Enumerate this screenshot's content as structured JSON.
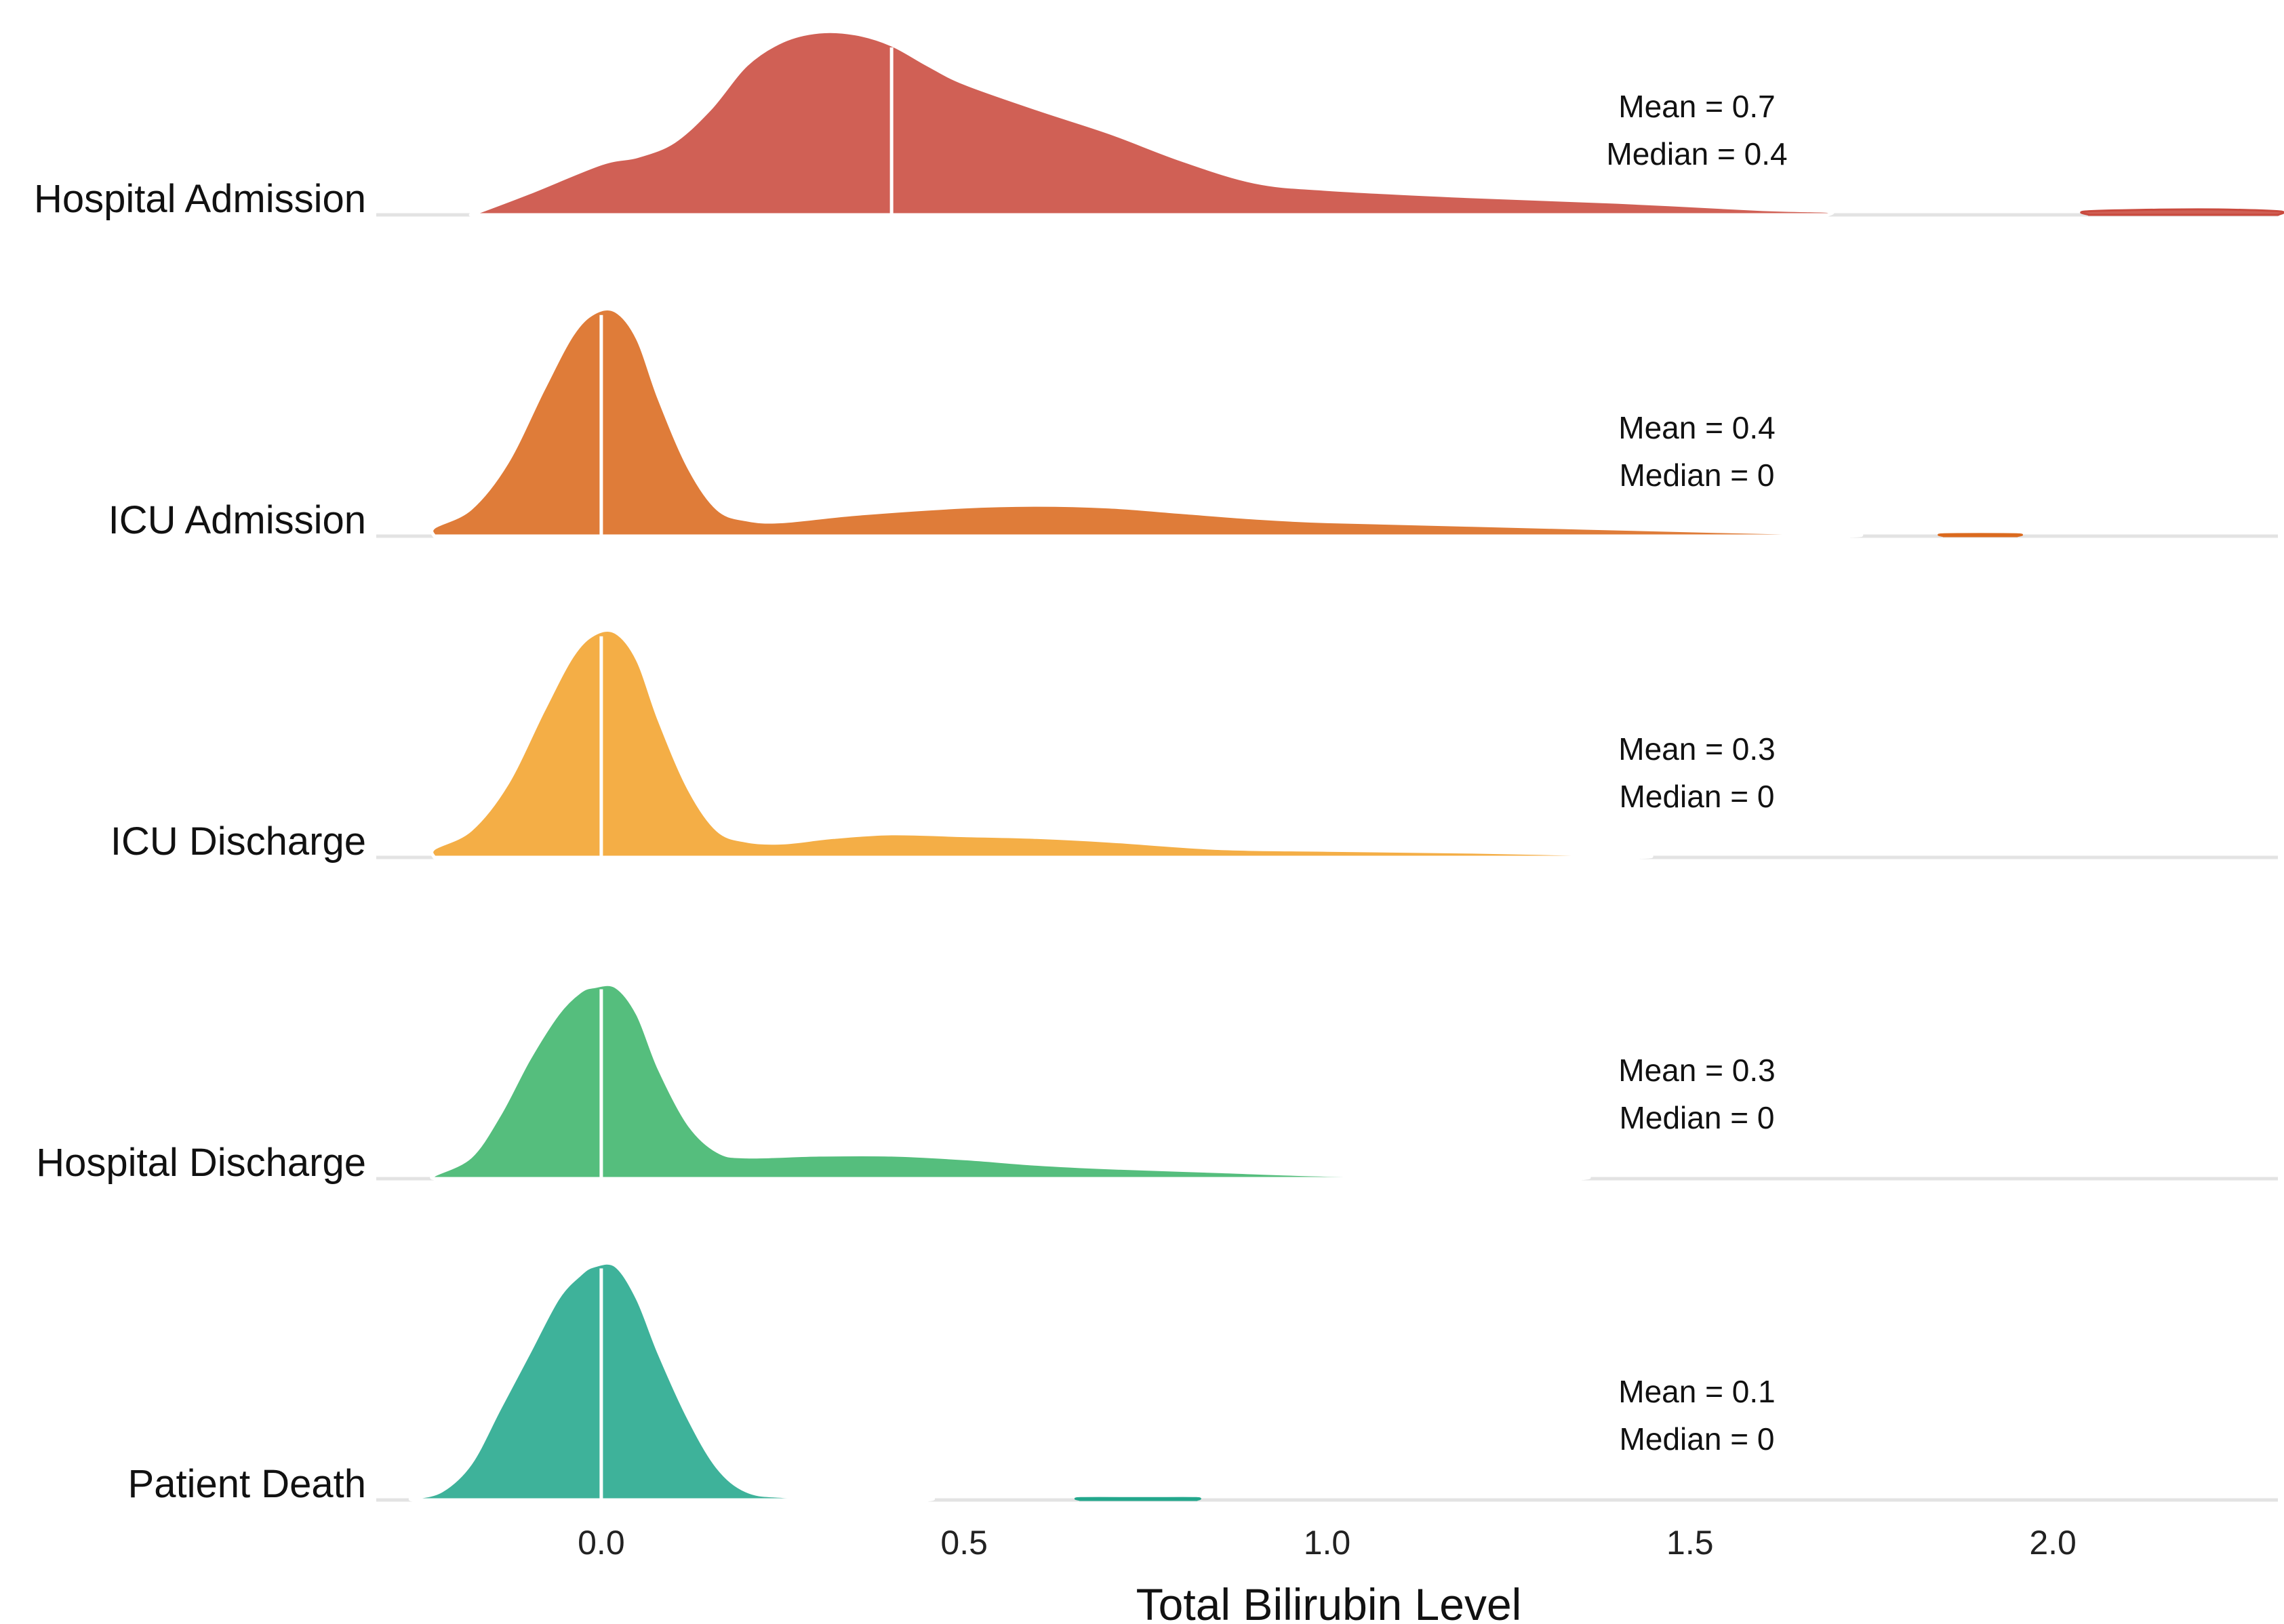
{
  "chart_data": {
    "type": "ridgeline",
    "xlabel": "Total Bilirubin Level",
    "xlim": [
      -0.31,
      2.31
    ],
    "xticks": [
      0.0,
      0.5,
      1.0,
      1.5,
      2.0
    ],
    "xtick_labels": [
      "0.0",
      "0.5",
      "1.0",
      "1.5",
      "2.0"
    ],
    "grid": "horizontal baselines only",
    "series": [
      {
        "name": "Hospital Admission",
        "color": "#C94A3E",
        "mean_label": "Mean = 0.7",
        "median_label": "Median = 0.4",
        "median": 0.4,
        "density": [
          [
            -0.18,
            0
          ],
          [
            -0.1,
            0.12
          ],
          [
            0.0,
            0.28
          ],
          [
            0.05,
            0.32
          ],
          [
            0.1,
            0.4
          ],
          [
            0.15,
            0.58
          ],
          [
            0.2,
            0.82
          ],
          [
            0.25,
            0.95
          ],
          [
            0.3,
            1.0
          ],
          [
            0.35,
            0.99
          ],
          [
            0.4,
            0.93
          ],
          [
            0.45,
            0.82
          ],
          [
            0.5,
            0.72
          ],
          [
            0.6,
            0.58
          ],
          [
            0.7,
            0.45
          ],
          [
            0.8,
            0.3
          ],
          [
            0.9,
            0.18
          ],
          [
            1.0,
            0.14
          ],
          [
            1.2,
            0.1
          ],
          [
            1.4,
            0.07
          ],
          [
            1.6,
            0.03
          ],
          [
            1.69,
            0.02
          ],
          [
            1.69,
            0
          ]
        ],
        "density_extra": [
          [
            2.05,
            0
          ],
          [
            2.05,
            0.02
          ],
          [
            2.2,
            0.03
          ],
          [
            2.31,
            0.02
          ],
          [
            2.31,
            0
          ]
        ]
      },
      {
        "name": "ICU Admission",
        "color": "#DB6A1E",
        "mean_label": "Mean = 0.4",
        "median_label": "Median = 0",
        "median": 0.0,
        "density": [
          [
            -0.23,
            0
          ],
          [
            -0.23,
            0.05
          ],
          [
            -0.18,
            0.15
          ],
          [
            -0.13,
            0.4
          ],
          [
            -0.08,
            0.8
          ],
          [
            -0.04,
            1.1
          ],
          [
            -0.01,
            1.22
          ],
          [
            0.02,
            1.23
          ],
          [
            0.05,
            1.08
          ],
          [
            0.08,
            0.75
          ],
          [
            0.12,
            0.38
          ],
          [
            0.16,
            0.15
          ],
          [
            0.2,
            0.09
          ],
          [
            0.25,
            0.08
          ],
          [
            0.35,
            0.12
          ],
          [
            0.5,
            0.16
          ],
          [
            0.6,
            0.17
          ],
          [
            0.7,
            0.16
          ],
          [
            0.8,
            0.13
          ],
          [
            0.9,
            0.1
          ],
          [
            1.0,
            0.08
          ],
          [
            1.2,
            0.06
          ],
          [
            1.5,
            0.03
          ],
          [
            1.72,
            0.01
          ],
          [
            1.72,
            0
          ]
        ],
        "density_extra": [
          [
            1.85,
            0
          ],
          [
            1.85,
            0.01
          ],
          [
            1.95,
            0.01
          ],
          [
            1.95,
            0
          ]
        ]
      },
      {
        "name": "ICU Discharge",
        "color": "#F2A32C",
        "mean_label": "Mean = 0.3",
        "median_label": "Median = 0",
        "median": 0.0,
        "density": [
          [
            -0.23,
            0
          ],
          [
            -0.23,
            0.05
          ],
          [
            -0.18,
            0.15
          ],
          [
            -0.13,
            0.4
          ],
          [
            -0.08,
            0.8
          ],
          [
            -0.04,
            1.1
          ],
          [
            -0.01,
            1.22
          ],
          [
            0.02,
            1.23
          ],
          [
            0.05,
            1.08
          ],
          [
            0.08,
            0.75
          ],
          [
            0.12,
            0.38
          ],
          [
            0.16,
            0.15
          ],
          [
            0.2,
            0.09
          ],
          [
            0.25,
            0.08
          ],
          [
            0.32,
            0.11
          ],
          [
            0.4,
            0.13
          ],
          [
            0.5,
            0.12
          ],
          [
            0.6,
            0.11
          ],
          [
            0.7,
            0.09
          ],
          [
            0.85,
            0.05
          ],
          [
            1.0,
            0.04
          ],
          [
            1.2,
            0.03
          ],
          [
            1.43,
            0.01
          ],
          [
            1.43,
            0
          ]
        ]
      },
      {
        "name": "Hospital Discharge",
        "color": "#3DB56B",
        "mean_label": "Mean = 0.3",
        "median_label": "Median = 0",
        "median": 0.0,
        "density": [
          [
            -0.23,
            0
          ],
          [
            -0.23,
            0.02
          ],
          [
            -0.18,
            0.12
          ],
          [
            -0.14,
            0.35
          ],
          [
            -0.1,
            0.65
          ],
          [
            -0.06,
            0.9
          ],
          [
            -0.03,
            1.02
          ],
          [
            -0.01,
            1.05
          ],
          [
            0.02,
            1.05
          ],
          [
            0.05,
            0.9
          ],
          [
            0.08,
            0.6
          ],
          [
            0.12,
            0.3
          ],
          [
            0.16,
            0.15
          ],
          [
            0.2,
            0.12
          ],
          [
            0.3,
            0.13
          ],
          [
            0.4,
            0.13
          ],
          [
            0.5,
            0.11
          ],
          [
            0.6,
            0.08
          ],
          [
            0.7,
            0.06
          ],
          [
            0.85,
            0.04
          ],
          [
            1.0,
            0.02
          ],
          [
            1.2,
            0.01
          ],
          [
            1.35,
            0.01
          ],
          [
            1.35,
            0
          ]
        ]
      },
      {
        "name": "Patient Death",
        "color": "#23A78C",
        "mean_label": "Mean = 0.1",
        "median_label": "Median = 0",
        "median": 0.0,
        "density": [
          [
            -0.26,
            0
          ],
          [
            -0.26,
            0.01
          ],
          [
            -0.22,
            0.05
          ],
          [
            -0.18,
            0.2
          ],
          [
            -0.14,
            0.5
          ],
          [
            -0.1,
            0.8
          ],
          [
            -0.06,
            1.1
          ],
          [
            -0.03,
            1.23
          ],
          [
            -0.01,
            1.28
          ],
          [
            0.02,
            1.28
          ],
          [
            0.05,
            1.1
          ],
          [
            0.08,
            0.8
          ],
          [
            0.12,
            0.45
          ],
          [
            0.16,
            0.18
          ],
          [
            0.2,
            0.05
          ],
          [
            0.25,
            0.02
          ],
          [
            0.35,
            0.01
          ],
          [
            0.45,
            0.01
          ],
          [
            0.45,
            0
          ]
        ],
        "density_extra": [
          [
            0.66,
            0
          ],
          [
            0.66,
            0.01
          ],
          [
            0.75,
            0.01
          ],
          [
            0.82,
            0.01
          ],
          [
            0.82,
            0
          ]
        ]
      }
    ]
  }
}
